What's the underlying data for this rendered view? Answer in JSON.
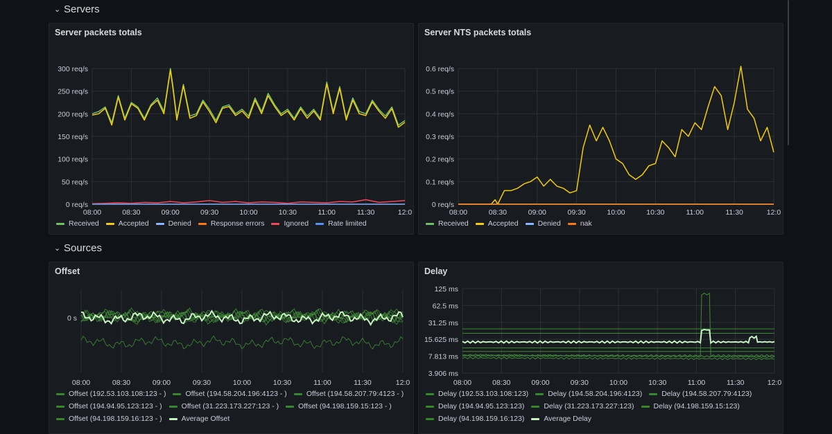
{
  "rows": {
    "servers": {
      "title": "Servers"
    },
    "sources": {
      "title": "Sources"
    }
  },
  "colors": {
    "green": "#73bf69",
    "yellow": "#f2cc0c",
    "blue": "#8ab8ff",
    "orange": "#ff780a",
    "red": "#f2495c",
    "blue2": "#5794f2",
    "darkgreen": "#37872d",
    "lightgreen": "#c8f2c2"
  },
  "panels": {
    "server_packets": {
      "title": "Server packets totals",
      "legend": [
        {
          "label": "Received",
          "color": "#73bf69"
        },
        {
          "label": "Accepted",
          "color": "#f2cc0c"
        },
        {
          "label": "Denied",
          "color": "#8ab8ff"
        },
        {
          "label": "Response errors",
          "color": "#ff780a"
        },
        {
          "label": "Ignored",
          "color": "#f2495c"
        },
        {
          "label": "Rate limited",
          "color": "#5794f2"
        }
      ]
    },
    "server_nts": {
      "title": "Server NTS packets totals",
      "legend": [
        {
          "label": "Received",
          "color": "#73bf69"
        },
        {
          "label": "Accepted",
          "color": "#f2cc0c"
        },
        {
          "label": "Denied",
          "color": "#8ab8ff"
        },
        {
          "label": "nak",
          "color": "#ff780a"
        }
      ]
    },
    "offset": {
      "title": "Offset",
      "legend": [
        {
          "label": "Offset (192.53.103.108:123 - )",
          "color": "#37872d"
        },
        {
          "label": "Offset (194.58.204.196:4123 - )",
          "color": "#37872d"
        },
        {
          "label": "Offset (194.58.207.79:4123 - )",
          "color": "#37872d"
        },
        {
          "label": "Offset (194.94.95.123:123 - )",
          "color": "#37872d"
        },
        {
          "label": "Offset (31.223.173.227:123 - )",
          "color": "#37872d"
        },
        {
          "label": "Offset (94.198.159.15:123 - )",
          "color": "#37872d"
        },
        {
          "label": "Offset (94.198.159.16:123 - )",
          "color": "#37872d"
        },
        {
          "label": "Average Offset",
          "color": "#c8f2c2"
        }
      ]
    },
    "delay": {
      "title": "Delay",
      "legend": [
        {
          "label": "Delay (192.53.103.108:123)",
          "color": "#37872d"
        },
        {
          "label": "Delay (194.58.204.196:4123)",
          "color": "#37872d"
        },
        {
          "label": "Delay (194.58.207.79:4123)",
          "color": "#37872d"
        },
        {
          "label": "Delay (194.94.95.123:123)",
          "color": "#37872d"
        },
        {
          "label": "Delay (31.223.173.227:123)",
          "color": "#37872d"
        },
        {
          "label": "Delay (94.198.159.15:123)",
          "color": "#37872d"
        },
        {
          "label": "Delay (94.198.159.16:123)",
          "color": "#37872d"
        },
        {
          "label": "Average Delay",
          "color": "#c8f2c2"
        }
      ]
    }
  },
  "chart_data": [
    {
      "id": "server_packets",
      "type": "line",
      "title": "Server packets totals",
      "x_ticks": [
        "08:00",
        "08:30",
        "09:00",
        "09:30",
        "10:00",
        "10:30",
        "11:00",
        "11:30",
        "12:0"
      ],
      "y_ticks": [
        "0 req/s",
        "50 req/s",
        "100 req/s",
        "150 req/s",
        "200 req/s",
        "250 req/s",
        "300 req/s"
      ],
      "ylim": [
        0,
        300
      ],
      "x_minutes": [
        0,
        240
      ],
      "series": [
        {
          "name": "Received",
          "color": "#73bf69",
          "x": [
            0,
            5,
            10,
            15,
            20,
            25,
            30,
            35,
            40,
            45,
            50,
            55,
            60,
            62,
            65,
            70,
            75,
            80,
            85,
            90,
            95,
            100,
            105,
            110,
            115,
            120,
            125,
            130,
            135,
            140,
            145,
            150,
            155,
            160,
            165,
            170,
            175,
            180,
            185,
            190,
            195,
            200,
            205,
            210,
            215,
            220,
            225,
            230,
            235,
            240
          ],
          "y": [
            200,
            205,
            215,
            180,
            240,
            190,
            225,
            215,
            190,
            220,
            235,
            205,
            300,
            260,
            190,
            265,
            195,
            200,
            230,
            210,
            185,
            215,
            220,
            200,
            210,
            195,
            235,
            205,
            245,
            220,
            200,
            210,
            190,
            215,
            195,
            210,
            190,
            270,
            205,
            260,
            190,
            235,
            205,
            200,
            230,
            210,
            195,
            215,
            175,
            185
          ]
        },
        {
          "name": "Accepted",
          "color": "#f2cc0c",
          "x": [
            0,
            5,
            10,
            15,
            20,
            25,
            30,
            35,
            40,
            45,
            50,
            55,
            60,
            62,
            65,
            70,
            75,
            80,
            85,
            90,
            95,
            100,
            105,
            110,
            115,
            120,
            125,
            130,
            135,
            140,
            145,
            150,
            155,
            160,
            165,
            170,
            175,
            180,
            185,
            190,
            195,
            200,
            205,
            210,
            215,
            220,
            225,
            230,
            235,
            240
          ],
          "y": [
            197,
            200,
            212,
            175,
            237,
            186,
            222,
            212,
            186,
            217,
            230,
            200,
            297,
            255,
            186,
            262,
            190,
            196,
            226,
            205,
            180,
            212,
            216,
            196,
            206,
            190,
            230,
            200,
            240,
            216,
            196,
            206,
            186,
            211,
            190,
            206,
            186,
            266,
            200,
            256,
            186,
            230,
            200,
            196,
            226,
            206,
            190,
            211,
            170,
            181
          ]
        },
        {
          "name": "Denied",
          "color": "#8ab8ff",
          "x": [
            0,
            240
          ],
          "y": [
            0,
            0
          ]
        },
        {
          "name": "Response errors",
          "color": "#ff780a",
          "x": [
            0,
            240
          ],
          "y": [
            0,
            0
          ]
        },
        {
          "name": "Ignored",
          "color": "#f2495c",
          "x": [
            0,
            10,
            20,
            30,
            40,
            50,
            60,
            70,
            80,
            90,
            100,
            110,
            120,
            130,
            140,
            150,
            160,
            170,
            180,
            190,
            200,
            210,
            220,
            230,
            240
          ],
          "y": [
            1,
            2,
            3,
            2,
            4,
            3,
            6,
            3,
            5,
            8,
            4,
            6,
            3,
            5,
            4,
            2,
            5,
            4,
            3,
            6,
            5,
            10,
            4,
            6,
            8
          ]
        },
        {
          "name": "Rate limited",
          "color": "#5794f2",
          "x": [
            0,
            240
          ],
          "y": [
            0,
            0
          ]
        }
      ]
    },
    {
      "id": "server_nts",
      "type": "line",
      "title": "Server NTS packets totals",
      "x_ticks": [
        "08:00",
        "08:30",
        "09:00",
        "09:30",
        "10:00",
        "10:30",
        "11:00",
        "11:30",
        "12:0"
      ],
      "y_ticks": [
        "0 req/s",
        "0.1 req/s",
        "0.2 req/s",
        "0.3 req/s",
        "0.4 req/s",
        "0.5 req/s",
        "0.6 req/s"
      ],
      "ylim": [
        0,
        0.6
      ],
      "x_minutes": [
        0,
        240
      ],
      "series": [
        {
          "name": "Received",
          "color": "#73bf69",
          "x": [
            0,
            240
          ],
          "y": [
            0,
            0
          ]
        },
        {
          "name": "Accepted",
          "color": "#f2cc0c",
          "x": [
            0,
            25,
            28,
            30,
            35,
            40,
            45,
            50,
            55,
            60,
            65,
            70,
            75,
            80,
            85,
            90,
            95,
            100,
            105,
            110,
            115,
            120,
            125,
            130,
            135,
            140,
            145,
            150,
            155,
            160,
            165,
            170,
            175,
            180,
            185,
            190,
            195,
            200,
            205,
            210,
            215,
            220,
            225,
            230,
            235,
            240
          ],
          "y": [
            0,
            0,
            0.02,
            0,
            0.06,
            0.06,
            0.07,
            0.09,
            0.1,
            0.12,
            0.08,
            0.11,
            0.08,
            0.07,
            0.05,
            0.06,
            0.25,
            0.35,
            0.28,
            0.34,
            0.28,
            0.2,
            0.18,
            0.13,
            0.11,
            0.13,
            0.17,
            0.18,
            0.28,
            0.25,
            0.21,
            0.33,
            0.3,
            0.36,
            0.33,
            0.43,
            0.52,
            0.48,
            0.33,
            0.45,
            0.61,
            0.42,
            0.38,
            0.28,
            0.34,
            0.23
          ]
        },
        {
          "name": "Denied",
          "color": "#8ab8ff",
          "x": [
            0,
            240
          ],
          "y": [
            0,
            0
          ]
        },
        {
          "name": "nak",
          "color": "#ff780a",
          "x": [
            0,
            240
          ],
          "y": [
            0,
            0
          ]
        }
      ]
    },
    {
      "id": "offset",
      "type": "line",
      "title": "Offset",
      "x_ticks": [
        "08:00",
        "08:30",
        "09:00",
        "09:30",
        "10:00",
        "10:30",
        "11:00",
        "11:30",
        "12:0"
      ],
      "y_ticks": [
        "0 s"
      ],
      "x_minutes": [
        0,
        240
      ],
      "bands": [
        {
          "name": "Offset (192.53.103.108:123 - )",
          "offset": 0.05
        },
        {
          "name": "Offset (194.58.204.196:4123 - )",
          "offset": 0.03
        },
        {
          "name": "Offset (194.58.207.79:4123 - )",
          "offset": 0.015
        },
        {
          "name": "Offset (194.94.95.123:123 - )",
          "offset": -0.01
        },
        {
          "name": "Offset (31.223.173.227:123 - )",
          "offset": 0.04
        },
        {
          "name": "Offset (94.198.159.15:123 - )",
          "offset": 0.02
        },
        {
          "name": "Offset (94.198.159.16:123 - )",
          "offset": -0.4
        },
        {
          "name": "Average Offset",
          "offset": 0
        }
      ]
    },
    {
      "id": "delay",
      "type": "line",
      "title": "Delay",
      "x_ticks": [
        "08:00",
        "08:30",
        "09:00",
        "09:30",
        "10:00",
        "10:30",
        "11:00",
        "11:30",
        "12:0"
      ],
      "y_ticks": [
        "3.906 ms",
        "7.813 ms",
        "15.625 ms",
        "31.25 ms",
        "62.5 ms",
        "125 ms"
      ],
      "scale": "log2",
      "x_minutes": [
        0,
        240
      ],
      "series": [
        {
          "name": "Delay (192.53.103.108:123)",
          "x": [
            0,
            240
          ],
          "y": [
            24,
            24
          ]
        },
        {
          "name": "Delay (194.58.204.196:4123)",
          "x": [
            0,
            240
          ],
          "y": [
            20,
            20
          ]
        },
        {
          "name": "Delay (194.58.207.79:4123)",
          "x": [
            0,
            240
          ],
          "y": [
            11,
            11
          ]
        },
        {
          "name": "Delay (194.94.95.123:123)",
          "x": [
            0,
            240
          ],
          "y": [
            8.2,
            7.6
          ]
        },
        {
          "name": "Delay (31.223.173.227:123)",
          "x": [
            0,
            240
          ],
          "y": [
            7.3,
            7.0
          ]
        },
        {
          "name": "Delay (94.198.159.15:123)",
          "x": [
            0,
            240
          ],
          "y": [
            9.5,
            9.5
          ]
        },
        {
          "name": "Delay (94.198.159.16:123)",
          "x": [
            0,
            183,
            184,
            190,
            191,
            240
          ],
          "y": [
            8,
            8,
            100,
            100,
            8,
            8
          ]
        },
        {
          "name": "Average Delay",
          "x": [
            0,
            183,
            184,
            190,
            191,
            220,
            221,
            226,
            227,
            240
          ],
          "y": [
            14,
            14,
            23,
            23,
            14,
            14,
            17,
            17,
            14,
            14
          ]
        }
      ]
    }
  ]
}
